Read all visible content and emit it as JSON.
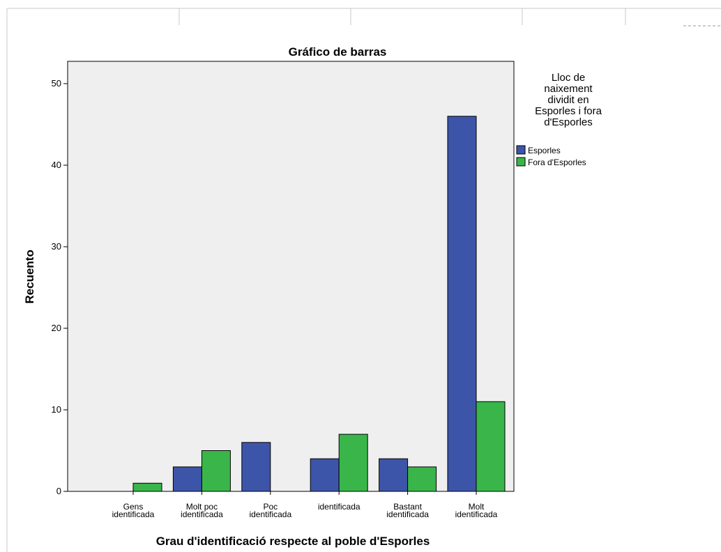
{
  "chart_data": {
    "type": "bar",
    "title": "Gráfico de barras",
    "xlabel": "Grau d'identificació respecte al poble d'Esporles",
    "ylabel": "Recuento",
    "ylim": [
      0,
      52
    ],
    "yticks": [
      0,
      10,
      20,
      30,
      40,
      50
    ],
    "grid": false,
    "legend_position": "right",
    "categories": [
      [
        "Gens",
        "identificada"
      ],
      [
        "Molt poc",
        "identificada"
      ],
      [
        "Poc",
        "identificada"
      ],
      [
        "identificada"
      ],
      [
        "Bastant",
        "identificada"
      ],
      [
        "Molt",
        "identificada"
      ]
    ],
    "legend_title": [
      "Lloc de",
      "naixement",
      "dividit en",
      "Esporles i fora",
      "d'Esporles"
    ],
    "series": [
      {
        "name": "Esporles",
        "color": "#3d55a9",
        "values": [
          0,
          3,
          6,
          4,
          4,
          46
        ]
      },
      {
        "name": "Fora d'Esporles",
        "color": "#3ab54a",
        "values": [
          1,
          5,
          0,
          7,
          3,
          11
        ]
      }
    ],
    "plot_background": "#efefef"
  }
}
